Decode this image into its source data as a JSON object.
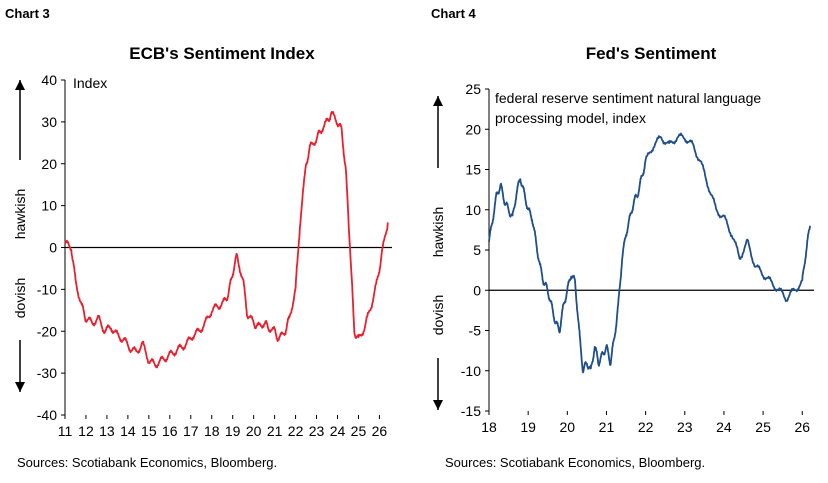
{
  "charts": [
    {
      "chart_label": "Chart 3",
      "source": "Sources: Scotiabank Economics, Bloomberg.",
      "chart_data": {
        "type": "line",
        "title": "ECB's Sentiment Index",
        "ylabel": "Index",
        "ylim": [
          -40,
          40
        ],
        "yticks": [
          40,
          30,
          20,
          10,
          0,
          -10,
          -20,
          -30,
          -40
        ],
        "xlim": [
          2011,
          2026.6
        ],
        "xticks": [
          "11",
          "12",
          "13",
          "14",
          "15",
          "16",
          "17",
          "18",
          "19",
          "20",
          "21",
          "22",
          "23",
          "24",
          "25",
          "26"
        ],
        "annotations": [
          "hawkish",
          "dovish"
        ],
        "grid": false,
        "series": [
          {
            "color": "#e8202e",
            "x": [
              2011.0,
              2011.3,
              2011.5,
              2011.8,
              2012.0,
              2012.3,
              2012.6,
              2012.9,
              2013.2,
              2013.5,
              2013.8,
              2014.1,
              2014.4,
              2014.7,
              2015.0,
              2015.3,
              2015.6,
              2015.9,
              2016.2,
              2016.5,
              2016.8,
              2017.1,
              2017.4,
              2017.7,
              2018.0,
              2018.3,
              2018.6,
              2018.8,
              2019.0,
              2019.2,
              2019.5,
              2019.7,
              2020.0,
              2020.2,
              2020.5,
              2020.7,
              2021.0,
              2021.2,
              2021.5,
              2021.7,
              2022.0,
              2022.2,
              2022.5,
              2022.7,
              2023.0,
              2023.2,
              2023.5,
              2023.7,
              2024.0,
              2024.2,
              2024.4,
              2024.6,
              2024.8,
              2025.0,
              2025.3,
              2025.6,
              2025.9,
              2026.1,
              2026.4
            ],
            "values": [
              1,
              0,
              -8,
              -14,
              -17,
              -18,
              -17,
              -20,
              -19,
              -21,
              -22,
              -24,
              -25,
              -23,
              -27,
              -28,
              -27,
              -26,
              -25,
              -24,
              -23,
              -21,
              -20,
              -18,
              -15,
              -14,
              -13,
              -11,
              -6,
              -2,
              -8,
              -16,
              -18,
              -19,
              -18,
              -19,
              -20,
              -22,
              -20,
              -17,
              -10,
              5,
              20,
              24,
              26,
              28,
              30,
              32,
              30,
              28,
              18,
              0,
              -20,
              -22,
              -19,
              -14,
              -8,
              -2,
              6
            ]
          }
        ]
      }
    },
    {
      "chart_label": "Chart 4",
      "source": "Sources: Scotiabank Economics, Bloomberg.",
      "chart_data": {
        "type": "line",
        "title": "Fed's Sentiment",
        "ylabel": "federal reserve sentiment natural language processing model, index",
        "ylabel_lines": [
          "federal reserve sentiment natural language",
          "processing model, index"
        ],
        "ylim": [
          -15,
          25
        ],
        "yticks": [
          25,
          20,
          15,
          10,
          5,
          0,
          -5,
          -10,
          -15
        ],
        "xlim": [
          2018,
          2026.3
        ],
        "xticks": [
          "18",
          "19",
          "20",
          "21",
          "22",
          "23",
          "24",
          "25",
          "26"
        ],
        "annotations": [
          "hawkish",
          "dovish"
        ],
        "grid": false,
        "series": [
          {
            "color": "#1f4e8c",
            "x": [
              2018.0,
              2018.1,
              2018.2,
              2018.3,
              2018.4,
              2018.5,
              2018.6,
              2018.7,
              2018.8,
              2018.9,
              2019.0,
              2019.1,
              2019.2,
              2019.3,
              2019.4,
              2019.5,
              2019.6,
              2019.7,
              2019.8,
              2019.9,
              2020.0,
              2020.1,
              2020.2,
              2020.3,
              2020.4,
              2020.5,
              2020.6,
              2020.7,
              2020.8,
              2020.9,
              2021.0,
              2021.1,
              2021.2,
              2021.3,
              2021.4,
              2021.5,
              2021.6,
              2021.7,
              2021.8,
              2021.9,
              2022.0,
              2022.2,
              2022.4,
              2022.6,
              2022.8,
              2023.0,
              2023.2,
              2023.4,
              2023.6,
              2023.8,
              2024.0,
              2024.2,
              2024.4,
              2024.6,
              2024.8,
              2025.0,
              2025.2,
              2025.4,
              2025.6,
              2025.8,
              2026.0,
              2026.1,
              2026.2
            ],
            "values": [
              6,
              9,
              12,
              13,
              11,
              10,
              9,
              12,
              14,
              12,
              10,
              9,
              6,
              3,
              1,
              0,
              -2,
              -4,
              -5,
              -2,
              0,
              2,
              1,
              -5,
              -10,
              -9,
              -10,
              -7,
              -9,
              -8,
              -7,
              -9,
              -6,
              -2,
              4,
              7,
              9,
              11,
              12,
              14,
              16,
              18,
              19,
              18,
              19,
              19,
              18,
              16,
              13,
              10,
              9,
              7,
              4,
              6,
              3,
              2,
              1,
              0,
              -1,
              0,
              1,
              5,
              8
            ]
          }
        ]
      }
    }
  ]
}
